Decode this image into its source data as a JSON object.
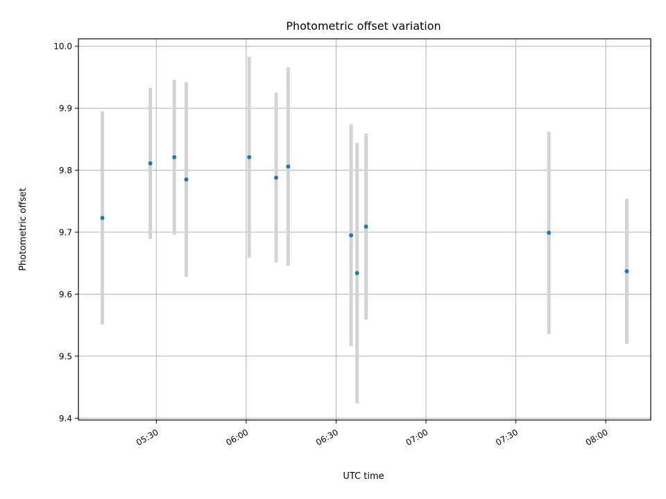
{
  "chart_data": {
    "type": "scatter",
    "title": "Photometric offset variation",
    "xlabel": "UTC time",
    "ylabel": "Photometric offset",
    "x_axis_type": "time",
    "xlim": [
      "05:04",
      "08:15"
    ],
    "ylim": [
      9.397,
      10.012
    ],
    "grid": true,
    "xticks": [
      "05:30",
      "06:00",
      "06:30",
      "07:00",
      "07:30",
      "08:00"
    ],
    "yticks": [
      "9.4",
      "9.5",
      "9.6",
      "9.7",
      "9.8",
      "9.9",
      "10.0"
    ],
    "point_color": "#1f77b4",
    "errorbar_color": "#d3d3d3",
    "points": [
      {
        "x": "05:12",
        "y": 9.723,
        "err": 0.172
      },
      {
        "x": "05:28",
        "y": 9.811,
        "err": 0.122
      },
      {
        "x": "05:36",
        "y": 9.821,
        "err": 0.125
      },
      {
        "x": "05:40",
        "y": 9.785,
        "err": 0.157
      },
      {
        "x": "06:01",
        "y": 9.821,
        "err": 0.162
      },
      {
        "x": "06:10",
        "y": 9.788,
        "err": 0.137
      },
      {
        "x": "06:14",
        "y": 9.806,
        "err": 0.16
      },
      {
        "x": "06:35",
        "y": 9.695,
        "err": 0.179
      },
      {
        "x": "06:37",
        "y": 9.634,
        "err": 0.21
      },
      {
        "x": "06:40",
        "y": 9.709,
        "err": 0.15
      },
      {
        "x": "07:41",
        "y": 9.699,
        "err": 0.163
      },
      {
        "x": "08:07",
        "y": 9.637,
        "err": 0.117
      }
    ]
  }
}
